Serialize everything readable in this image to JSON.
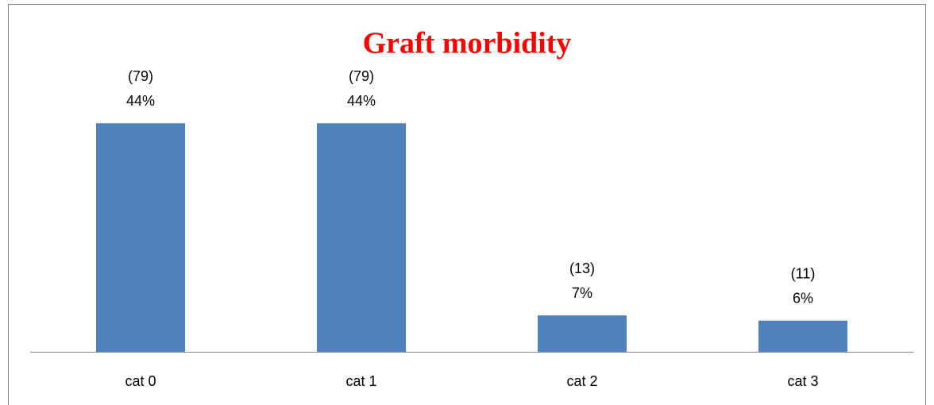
{
  "chart_data": {
    "type": "bar",
    "title": "Graft morbidity",
    "categories": [
      "cat 0",
      "cat 1",
      "cat 2",
      "cat 3"
    ],
    "values": [
      44,
      44,
      7,
      6
    ],
    "value_labels": [
      "44%",
      "44%",
      "7%",
      "6%"
    ],
    "count_labels": [
      "(79)",
      "(79)",
      "(13)",
      "(11)"
    ],
    "color": "#4f81bd",
    "ylim": [
      0,
      50
    ]
  }
}
